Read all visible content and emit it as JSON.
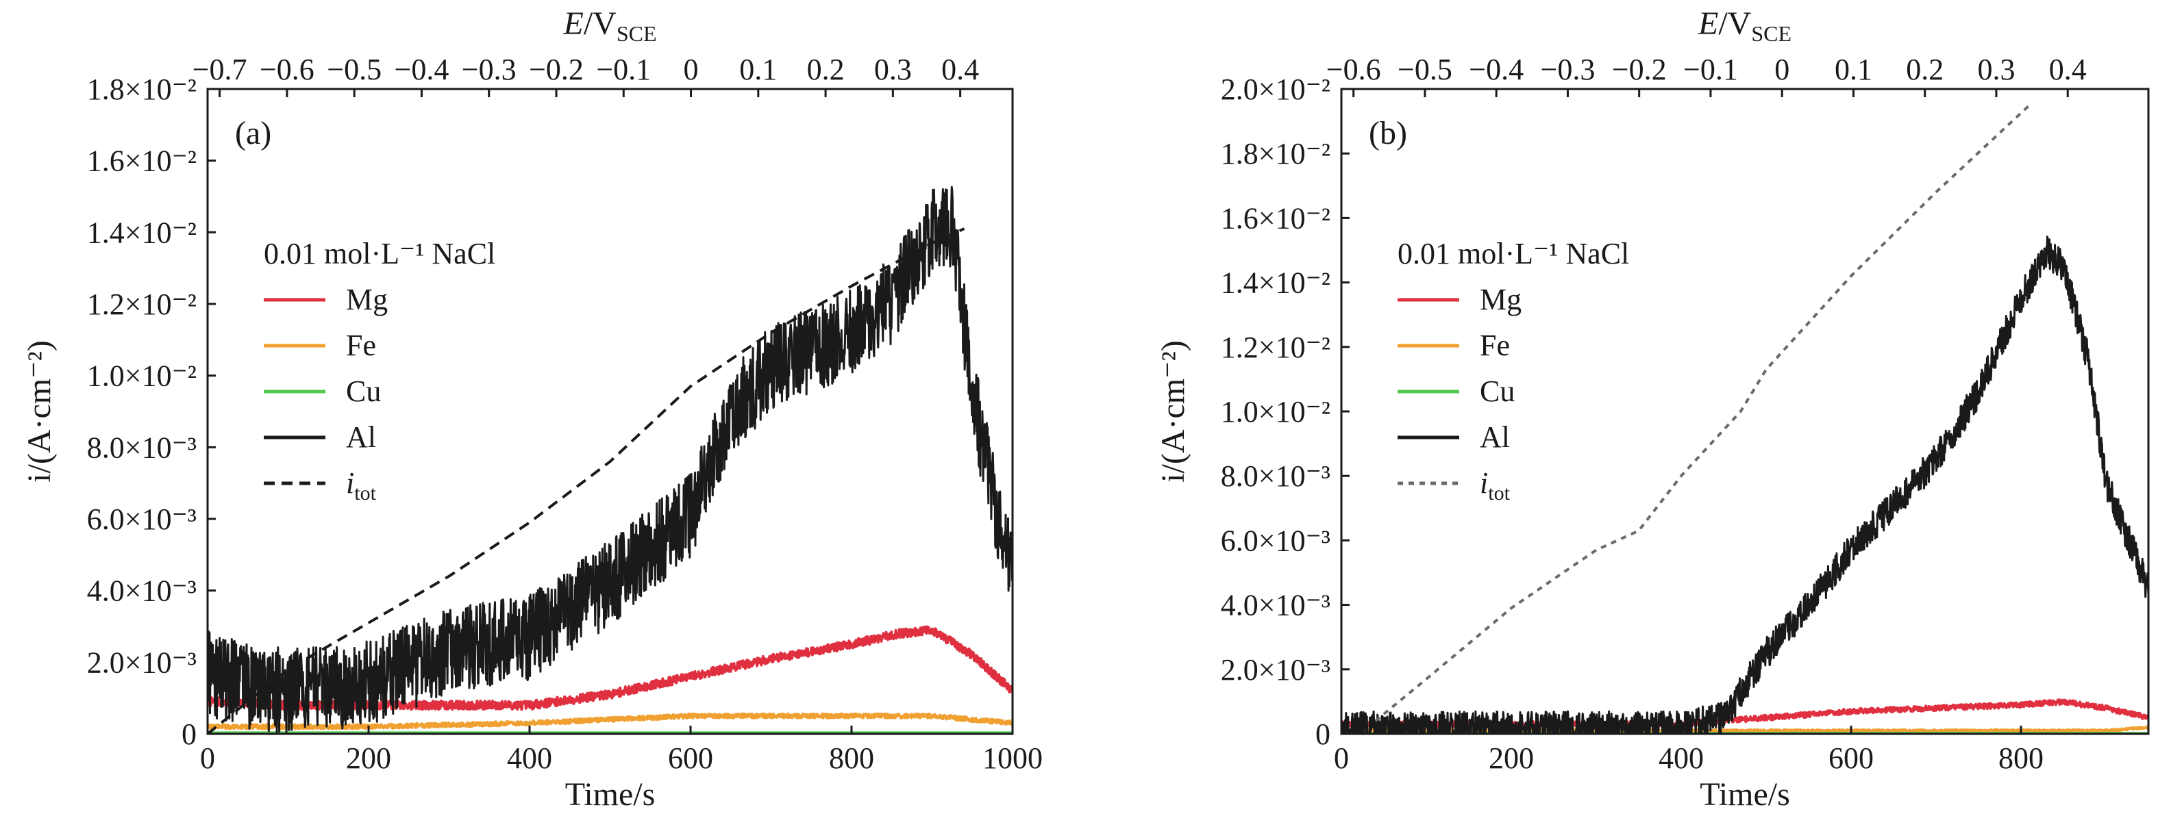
{
  "chart_data": [
    {
      "type": "line",
      "panel_label": "(a)",
      "xlabel": "Time/s",
      "ylabel": "i/(A·cm⁻²)",
      "top_xlabel": "E/V_SCE",
      "xlim": [
        0,
        1000
      ],
      "ylim": [
        0,
        0.018
      ],
      "x_ticks": [
        "0",
        "200",
        "400",
        "600",
        "800",
        "1000"
      ],
      "y_ticks": [
        "0",
        "2.0×10⁻³",
        "4.0×10⁻³",
        "6.0×10⁻³",
        "8.0×10⁻³",
        "1.0×10⁻²",
        "1.2×10⁻²",
        "1.4×10⁻²",
        "1.6×10⁻²",
        "1.8×10⁻²"
      ],
      "top_ticks": [
        "−0.7",
        "−0.6",
        "−0.5",
        "−0.4",
        "−0.3",
        "−0.2",
        "−0.1",
        "0",
        "0.1",
        "0.2",
        "0.3",
        "0.4"
      ],
      "legend_title": "0.01 mol·L⁻¹ NaCl",
      "legend_position": "left",
      "series": [
        {
          "name": "Mg",
          "color": "#e03040",
          "style": "solid",
          "x": [
            0,
            100,
            200,
            300,
            400,
            500,
            600,
            700,
            800,
            860,
            900,
            950,
            1000
          ],
          "y": [
            0.0009,
            0.0008,
            0.0008,
            0.0008,
            0.0008,
            0.0011,
            0.0016,
            0.0021,
            0.0025,
            0.0028,
            0.0029,
            0.0022,
            0.0012
          ]
        },
        {
          "name": "Fe",
          "color": "#f0a030",
          "style": "solid",
          "x": [
            0,
            200,
            400,
            600,
            800,
            900,
            1000
          ],
          "y": [
            0.0002,
            0.0002,
            0.0003,
            0.0005,
            0.0005,
            0.0005,
            0.0003
          ]
        },
        {
          "name": "Cu",
          "color": "#50c850",
          "style": "solid",
          "x": [
            0,
            500,
            1000
          ],
          "y": [
            3e-05,
            3e-05,
            3e-05
          ]
        },
        {
          "name": "Al",
          "color": "#1a1a1a",
          "style": "solid",
          "x": [
            0,
            50,
            100,
            200,
            300,
            400,
            500,
            600,
            650,
            700,
            800,
            850,
            900,
            925,
            950,
            980,
            1000
          ],
          "y": [
            0.0017,
            0.0013,
            0.0012,
            0.0014,
            0.0023,
            0.0027,
            0.0042,
            0.0061,
            0.009,
            0.0102,
            0.0112,
            0.0121,
            0.014,
            0.0142,
            0.0095,
            0.0062,
            0.0047
          ]
        },
        {
          "name": "i_tot",
          "label_base": "i",
          "label_sub": "tot",
          "color": "#1a1a1a",
          "style": "dashed",
          "x": [
            0,
            100,
            200,
            300,
            400,
            500,
            600,
            700,
            800,
            900,
            940
          ],
          "y": [
            0,
            0.0018,
            0.0031,
            0.0044,
            0.0059,
            0.0076,
            0.0097,
            0.0112,
            0.0125,
            0.0137,
            0.0141
          ]
        }
      ]
    },
    {
      "type": "line",
      "panel_label": "(b)",
      "xlabel": "Time/s",
      "ylabel": "i/(A·cm⁻²)",
      "top_xlabel": "E/V_SCE",
      "xlim": [
        0,
        950
      ],
      "ylim": [
        0,
        0.02
      ],
      "x_ticks": [
        "0",
        "200",
        "400",
        "600",
        "800"
      ],
      "y_ticks": [
        "0",
        "2.0×10⁻³",
        "4.0×10⁻³",
        "6.0×10⁻³",
        "8.0×10⁻³",
        "1.0×10⁻²",
        "1.2×10⁻²",
        "1.4×10⁻²",
        "1.6×10⁻²",
        "1.8×10⁻²",
        "2.0×10⁻²"
      ],
      "top_ticks": [
        "−0.6",
        "−0.5",
        "−0.4",
        "−0.3",
        "−0.2",
        "−0.1",
        "0",
        "0.1",
        "0.2",
        "0.3",
        "0.4"
      ],
      "legend_title": "0.01 mol·L⁻¹ NaCl",
      "legend_position": "left",
      "series": [
        {
          "name": "Mg",
          "color": "#e03040",
          "style": "solid",
          "x": [
            0,
            200,
            400,
            450,
            500,
            600,
            700,
            800,
            850,
            900,
            950
          ],
          "y": [
            0.0003,
            0.0003,
            0.0003,
            0.0004,
            0.0005,
            0.0007,
            0.0008,
            0.0009,
            0.001,
            0.0008,
            0.0005
          ]
        },
        {
          "name": "Fe",
          "color": "#f0a030",
          "style": "solid",
          "x": [
            0,
            300,
            600,
            900,
            950
          ],
          "y": [
            0.0001,
            0.0001,
            0.0001,
            0.0001,
            0.0002
          ]
        },
        {
          "name": "Cu",
          "color": "#50c850",
          "style": "solid",
          "x": [
            0,
            500,
            950
          ],
          "y": [
            2e-05,
            2e-05,
            2e-05
          ]
        },
        {
          "name": "Al",
          "color": "#1a1a1a",
          "style": "solid",
          "x": [
            0,
            200,
            300,
            400,
            450,
            500,
            550,
            600,
            700,
            750,
            800,
            830,
            850,
            880,
            900,
            950
          ],
          "y": [
            0.0002,
            0.0002,
            0.0002,
            0.0002,
            0.0005,
            0.0025,
            0.004,
            0.0057,
            0.0085,
            0.0106,
            0.0135,
            0.015,
            0.0145,
            0.0115,
            0.0078,
            0.0045
          ]
        },
        {
          "name": "i_tot",
          "label_base": "i",
          "label_sub": "tot",
          "color": "#6a6a6a",
          "style": "dotted",
          "x": [
            40,
            100,
            200,
            300,
            350,
            400,
            470,
            500,
            600,
            700,
            810
          ],
          "y": [
            0.0004,
            0.0017,
            0.0039,
            0.0057,
            0.0063,
            0.008,
            0.01,
            0.0113,
            0.0142,
            0.0168,
            0.0195
          ]
        }
      ]
    }
  ]
}
